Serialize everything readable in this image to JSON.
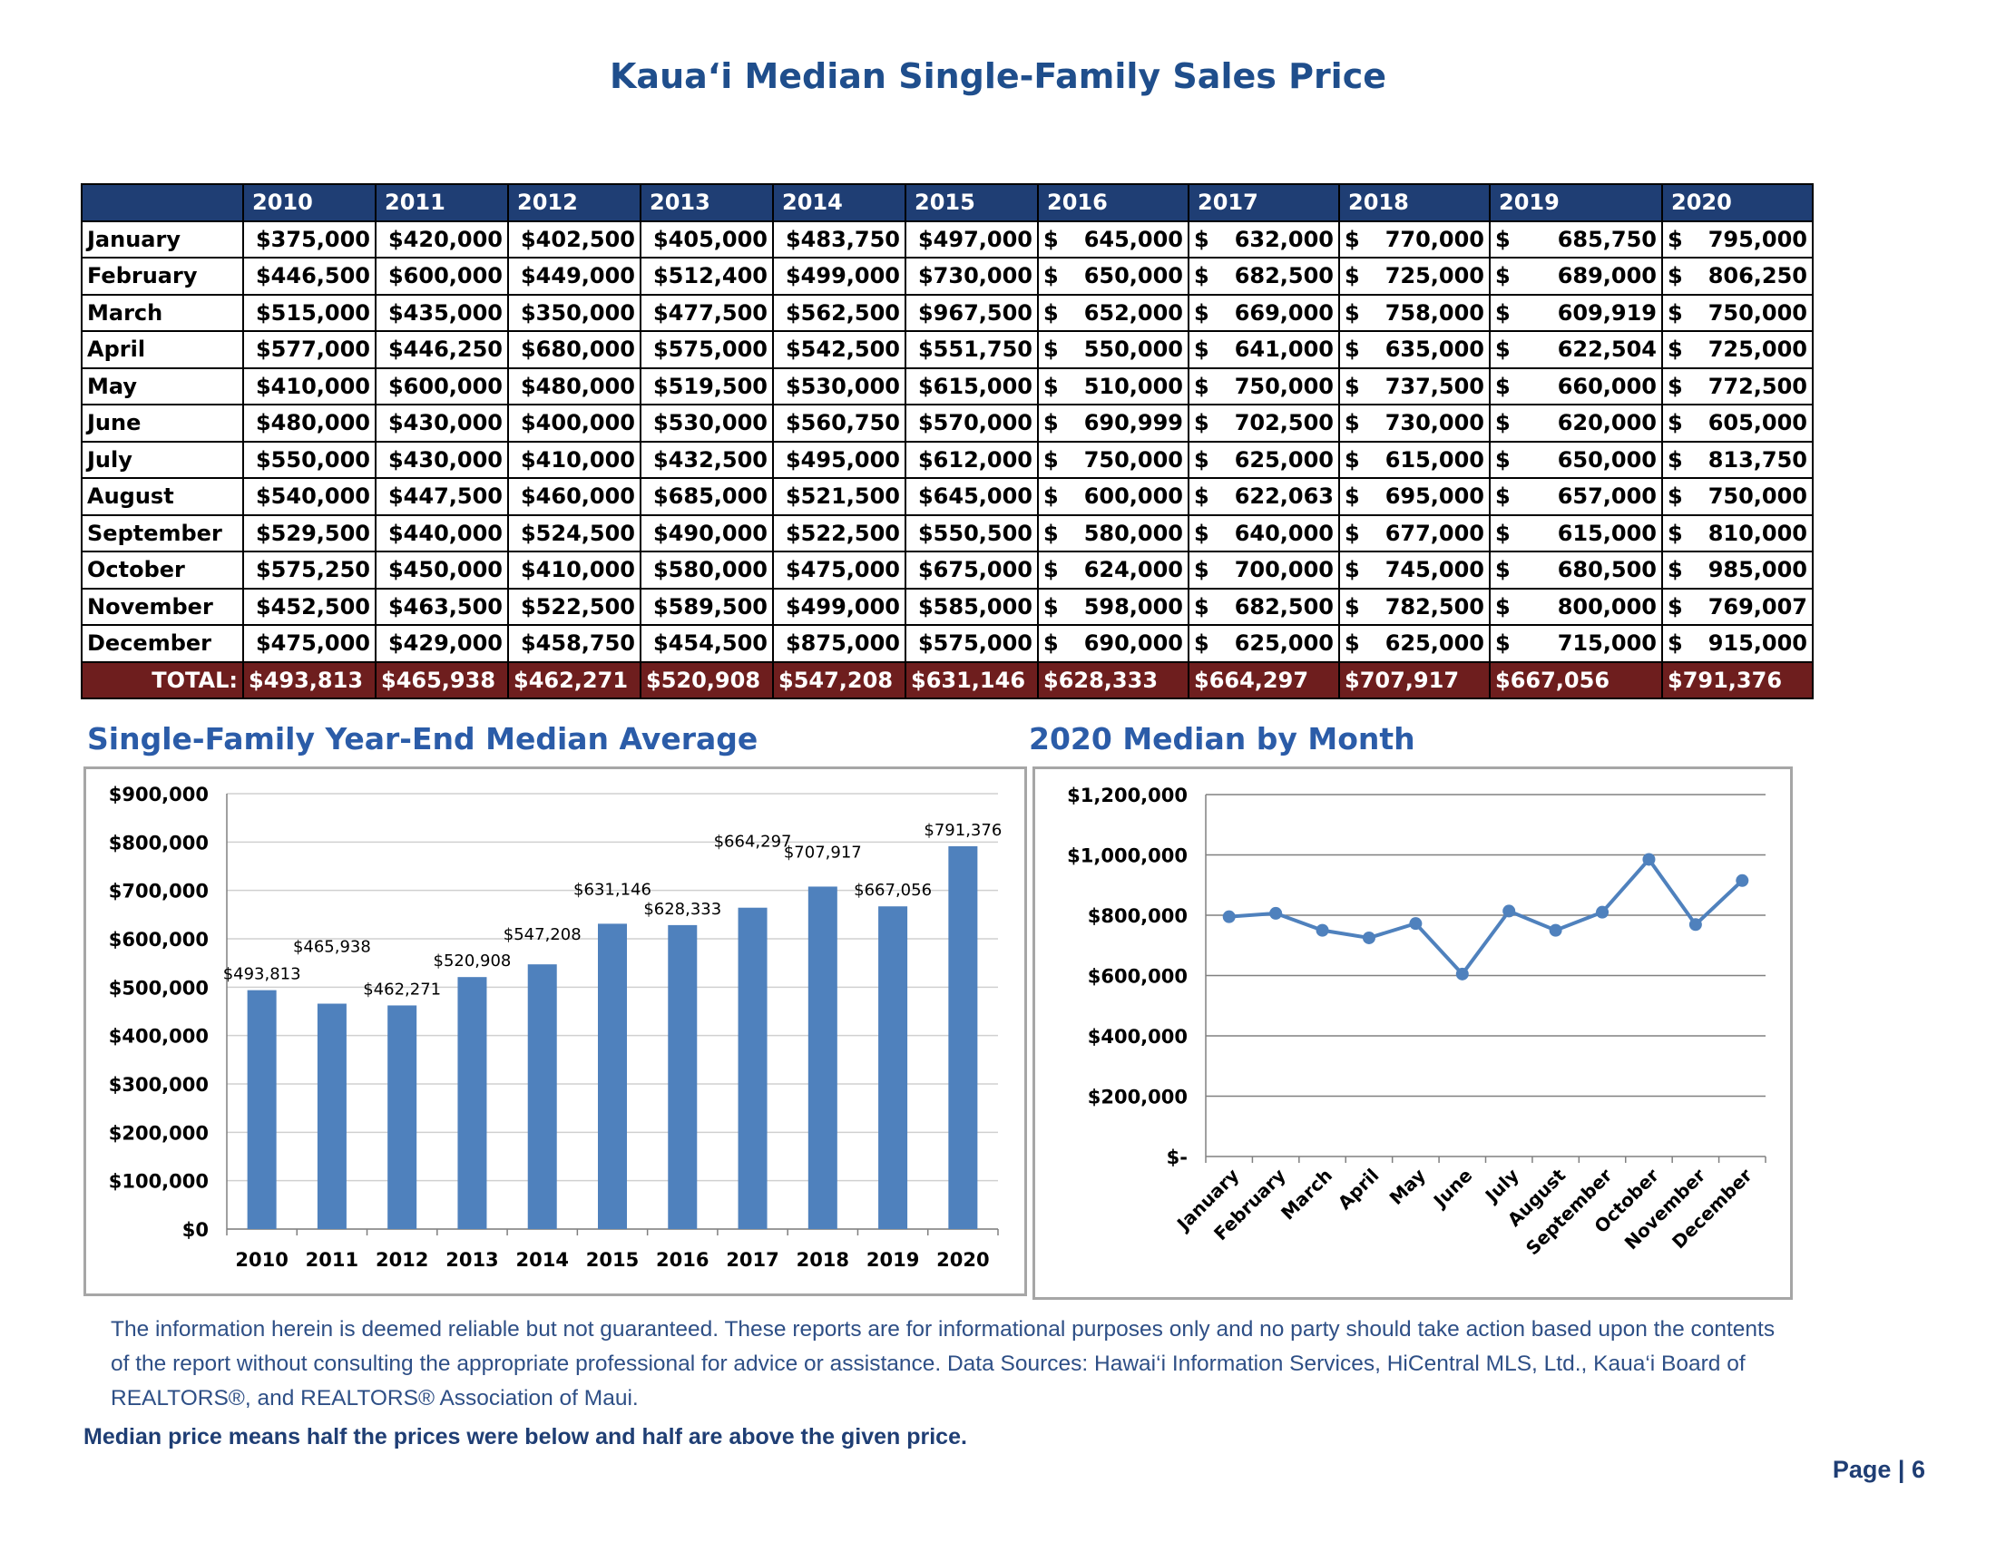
{
  "page": {
    "title": "Kaua‘i Median Single-Family Sales Price",
    "disclaimer": "The information herein is deemed reliable but not guaranteed. These reports are for informational purposes only and no party should take action based upon the contents of the report without consulting the appropriate professional for advice or assistance. Data Sources: Hawai‘i Information Services, HiCentral MLS, Ltd., Kaua‘i Board of REALTORS®, and REALTORS® Association of Maui.",
    "median_note": "Median price means half the prices were below and half are above the given price.",
    "page_number": "Page | 6"
  },
  "table": {
    "years": [
      "2010",
      "2011",
      "2012",
      "2013",
      "2014",
      "2015",
      "2016",
      "2017",
      "2018",
      "2019",
      "2020"
    ],
    "rows": [
      {
        "month": "January",
        "values": [
          "$375,000",
          "$420,000",
          "$402,500",
          "$405,000",
          "$483,750",
          "$497,000",
          "645,000",
          "632,000",
          "770,000",
          "685,750",
          "795,000"
        ]
      },
      {
        "month": "February",
        "values": [
          "$446,500",
          "$600,000",
          "$449,000",
          "$512,400",
          "$499,000",
          "$730,000",
          "650,000",
          "682,500",
          "725,000",
          "689,000",
          "806,250"
        ]
      },
      {
        "month": "March",
        "values": [
          "$515,000",
          "$435,000",
          "$350,000",
          "$477,500",
          "$562,500",
          "$967,500",
          "652,000",
          "669,000",
          "758,000",
          "609,919",
          "750,000"
        ]
      },
      {
        "month": "April",
        "values": [
          "$577,000",
          "$446,250",
          "$680,000",
          "$575,000",
          "$542,500",
          "$551,750",
          "550,000",
          "641,000",
          "635,000",
          "622,504",
          "725,000"
        ]
      },
      {
        "month": "May",
        "values": [
          "$410,000",
          "$600,000",
          "$480,000",
          "$519,500",
          "$530,000",
          "$615,000",
          "510,000",
          "750,000",
          "737,500",
          "660,000",
          "772,500"
        ]
      },
      {
        "month": "June",
        "values": [
          "$480,000",
          "$430,000",
          "$400,000",
          "$530,000",
          "$560,750",
          "$570,000",
          "690,999",
          "702,500",
          "730,000",
          "620,000",
          "605,000"
        ]
      },
      {
        "month": "July",
        "values": [
          "$550,000",
          "$430,000",
          "$410,000",
          "$432,500",
          "$495,000",
          "$612,000",
          "750,000",
          "625,000",
          "615,000",
          "650,000",
          "813,750"
        ]
      },
      {
        "month": "August",
        "values": [
          "$540,000",
          "$447,500",
          "$460,000",
          "$685,000",
          "$521,500",
          "$645,000",
          "600,000",
          "622,063",
          "695,000",
          "657,000",
          "750,000"
        ]
      },
      {
        "month": "September",
        "values": [
          "$529,500",
          "$440,000",
          "$524,500",
          "$490,000",
          "$522,500",
          "$550,500",
          "580,000",
          "640,000",
          "677,000",
          "615,000",
          "810,000"
        ]
      },
      {
        "month": "October",
        "values": [
          "$575,250",
          "$450,000",
          "$410,000",
          "$580,000",
          "$475,000",
          "$675,000",
          "624,000",
          "700,000",
          "745,000",
          "680,500",
          "985,000"
        ]
      },
      {
        "month": "November",
        "values": [
          "$452,500",
          "$463,500",
          "$522,500",
          "$589,500",
          "$499,000",
          "$585,000",
          "598,000",
          "682,500",
          "782,500",
          "800,000",
          "769,007"
        ]
      },
      {
        "month": "December",
        "values": [
          "$475,000",
          "$429,000",
          "$458,750",
          "$454,500",
          "$875,000",
          "$575,000",
          "690,000",
          "625,000",
          "625,000",
          "715,000",
          "915,000"
        ]
      }
    ],
    "currency_symbol": "$",
    "total_label": "TOTAL:",
    "totals": [
      "$493,813",
      "$465,938",
      "$462,271",
      "$520,908",
      "$547,208",
      "$631,146",
      "$628,333",
      "$664,297",
      "$707,917",
      "$667,056",
      "$791,376"
    ]
  },
  "chart_titles": {
    "bar": "Single-Family Year-End Median Average",
    "line": "2020 Median by Month"
  },
  "chart_data": [
    {
      "type": "bar",
      "title": "Single-Family Year-End Median Average",
      "categories": [
        "2010",
        "2011",
        "2012",
        "2013",
        "2014",
        "2015",
        "2016",
        "2017",
        "2018",
        "2019",
        "2020"
      ],
      "values": [
        493813,
        465938,
        462271,
        520908,
        547208,
        631146,
        628333,
        664297,
        707917,
        667056,
        791376
      ],
      "data_labels": [
        "$493,813",
        "$465,938",
        "$462,271",
        "$520,908",
        "$547,208",
        "$631,146",
        "$628,333",
        "$664,297",
        "$707,917",
        "$667,056",
        "$791,376"
      ],
      "ylim": [
        0,
        900000
      ],
      "yticks": [
        0,
        100000,
        200000,
        300000,
        400000,
        500000,
        600000,
        700000,
        800000,
        900000
      ],
      "ytick_labels": [
        "$0",
        "$100,000",
        "$200,000",
        "$300,000",
        "$400,000",
        "$500,000",
        "$600,000",
        "$700,000",
        "$800,000",
        "$900,000"
      ],
      "grid": true,
      "color": "#4F81BD"
    },
    {
      "type": "line",
      "title": "2020 Median by Month",
      "categories": [
        "January",
        "February",
        "March",
        "April",
        "May",
        "June",
        "July",
        "August",
        "September",
        "October",
        "November",
        "December"
      ],
      "values": [
        795000,
        806250,
        750000,
        725000,
        772500,
        605000,
        813750,
        750000,
        810000,
        985000,
        769007,
        915000
      ],
      "ylim": [
        0,
        1200000
      ],
      "yticks": [
        0,
        200000,
        400000,
        600000,
        800000,
        1000000,
        1200000
      ],
      "ytick_labels": [
        "$-",
        "$200,000",
        "$400,000",
        "$600,000",
        "$800,000",
        "$1,000,000",
        "$1,200,000"
      ],
      "grid": true,
      "color": "#4F81BD"
    }
  ]
}
